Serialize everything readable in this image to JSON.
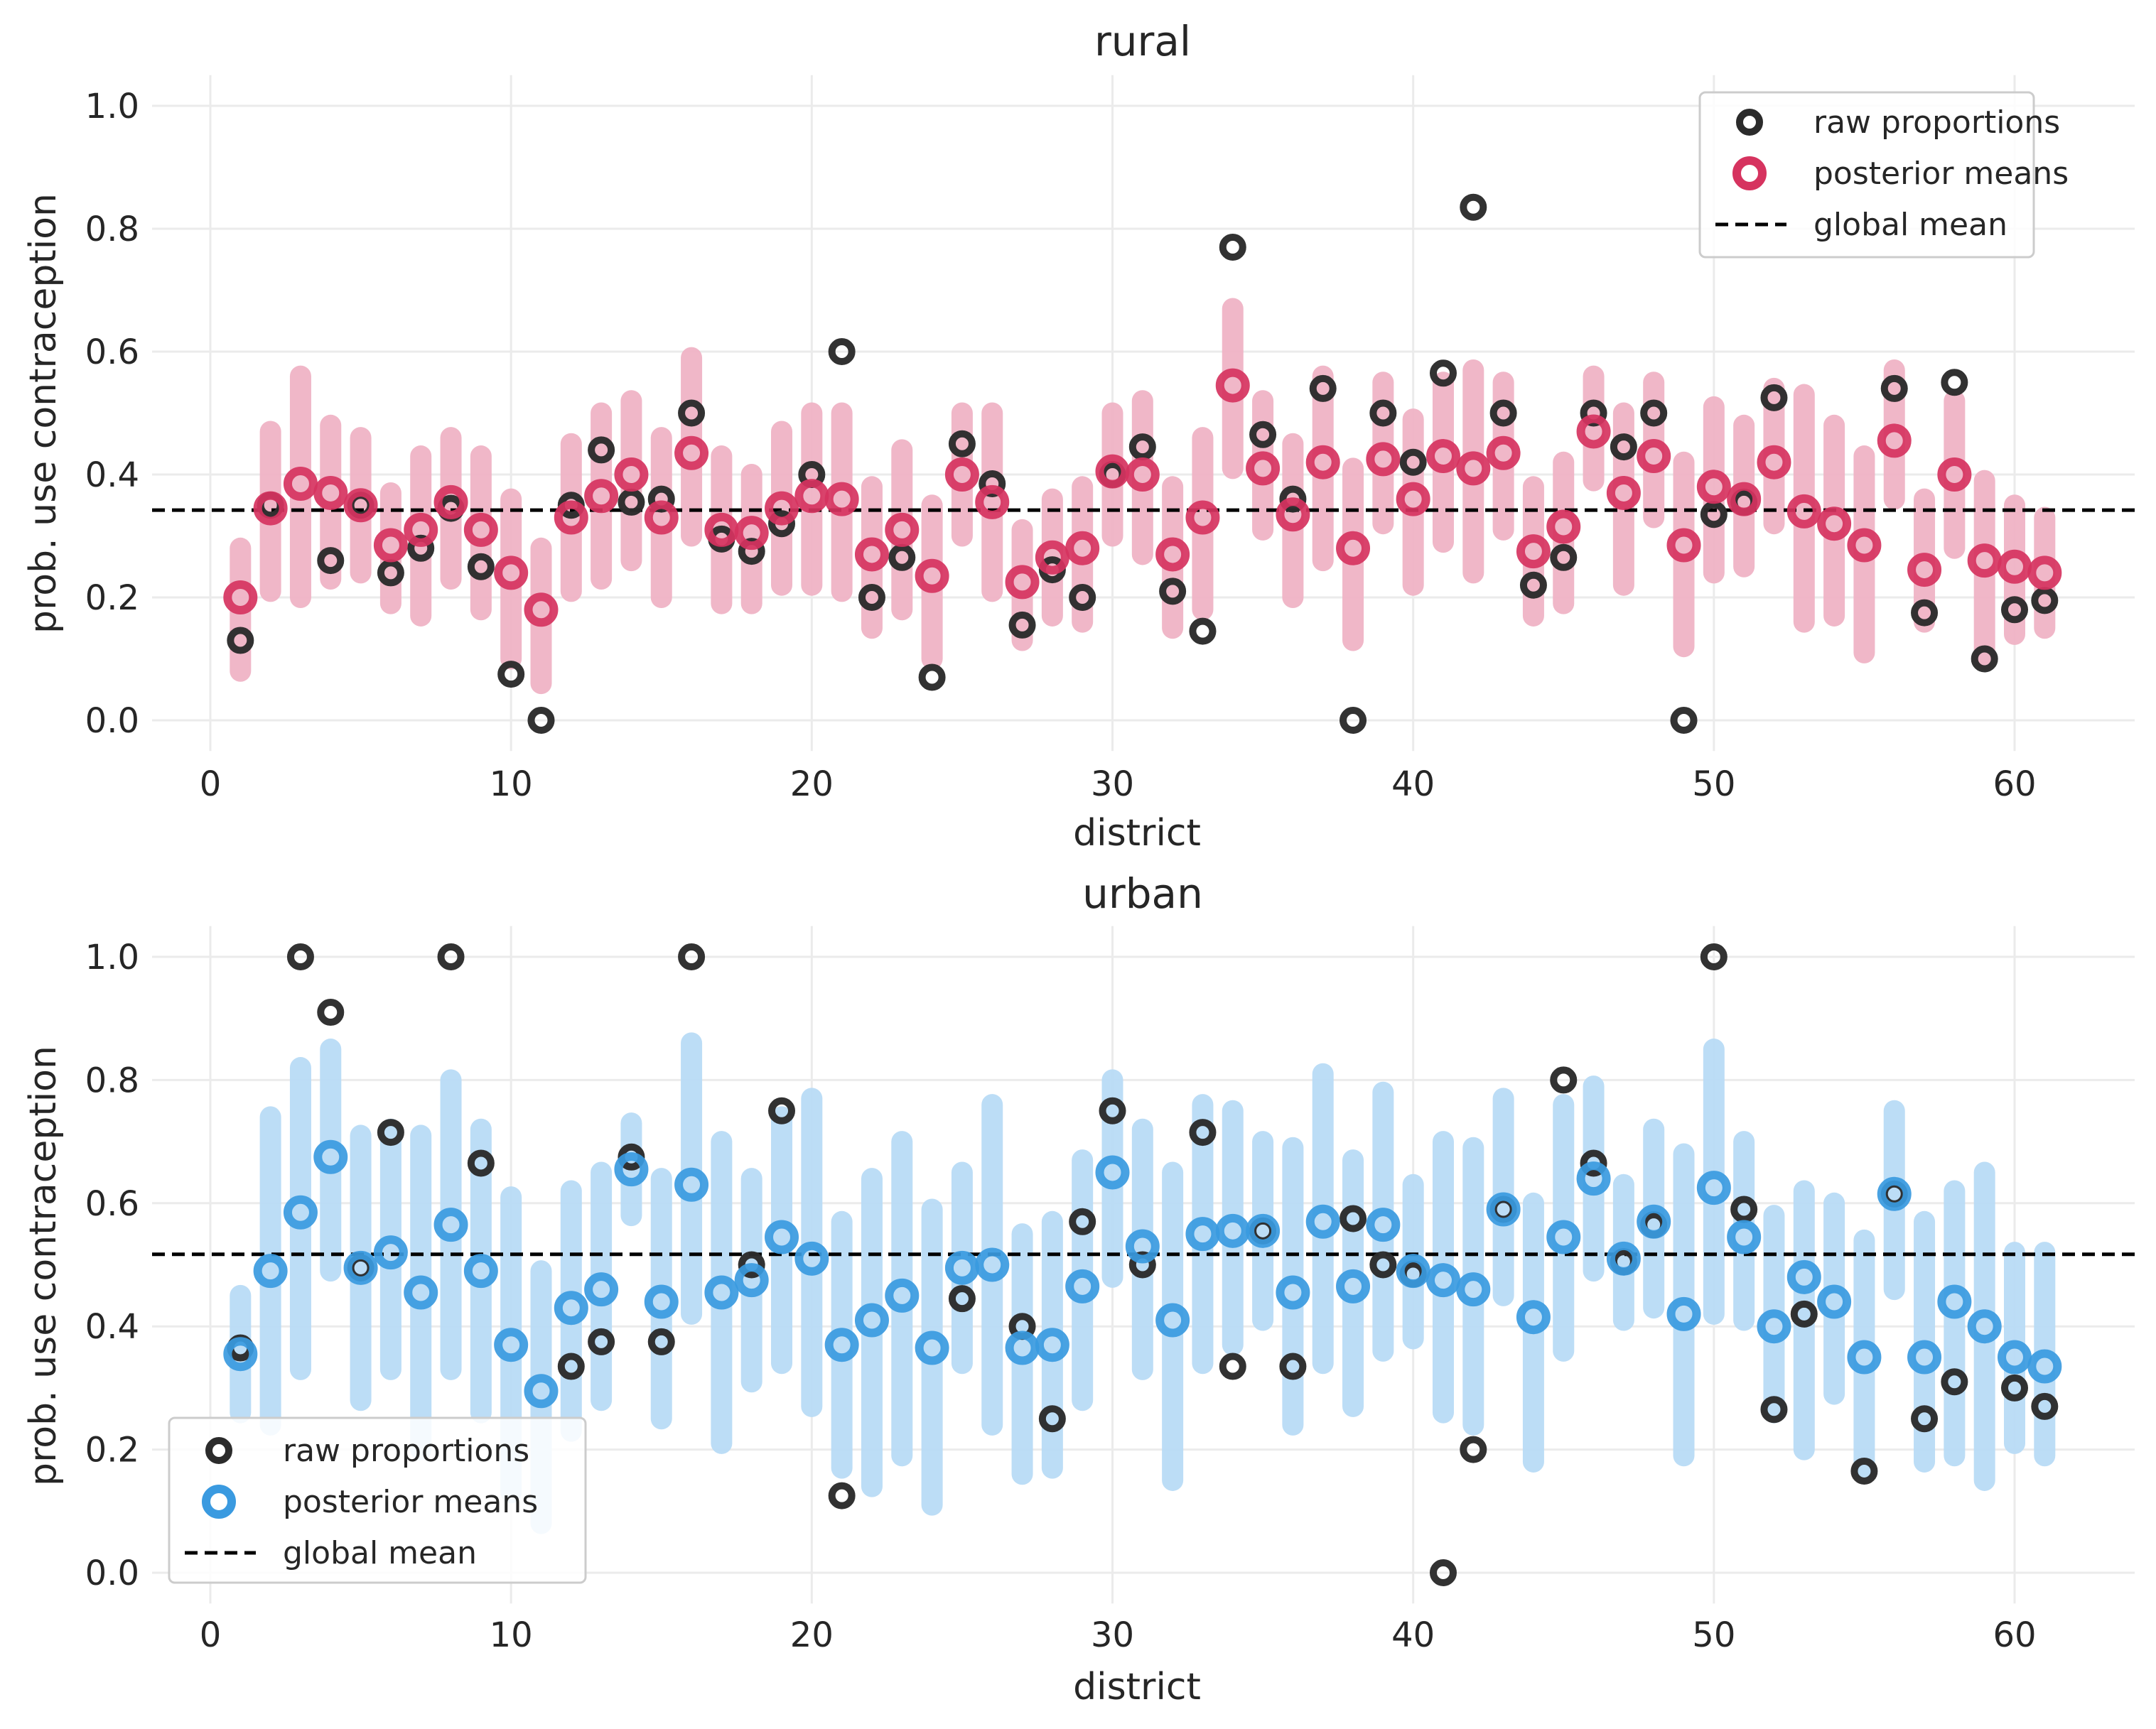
{
  "colors": {
    "raw": "#2b2b2b",
    "rural_post": "#d6335f",
    "rural_ci": "#efb3c5",
    "urban_post": "#3a9ae0",
    "urban_ci": "#b8dbf5",
    "global_mean": "#000000",
    "grid": "#ebebeb"
  },
  "chart_data": [
    {
      "type": "scatter",
      "title": "rural",
      "xlabel": "district",
      "ylabel": "prob. use contraception",
      "xlim": [
        -2,
        64
      ],
      "ylim": [
        -0.05,
        1.05
      ],
      "xticks": [
        0,
        10,
        20,
        30,
        40,
        50,
        60
      ],
      "yticks": [
        0.0,
        0.2,
        0.4,
        0.6,
        0.8,
        1.0
      ],
      "ytick_labels": [
        "0.0",
        "0.2",
        "0.4",
        "0.6",
        "0.8",
        "1.0"
      ],
      "grid": true,
      "legend_position": "top-right",
      "legend": [
        "raw proportions",
        "posterior means",
        "global mean"
      ],
      "global_mean": 0.342,
      "districts": [
        1,
        2,
        3,
        4,
        5,
        6,
        7,
        8,
        9,
        10,
        11,
        12,
        13,
        14,
        15,
        16,
        17,
        18,
        19,
        20,
        21,
        22,
        23,
        24,
        25,
        26,
        27,
        28,
        29,
        30,
        31,
        32,
        33,
        34,
        35,
        36,
        37,
        38,
        39,
        40,
        41,
        42,
        43,
        44,
        45,
        46,
        47,
        48,
        49,
        50,
        51,
        52,
        53,
        54,
        55,
        56,
        57,
        58,
        59,
        60,
        61
      ],
      "series": [
        {
          "name": "raw proportions",
          "values": [
            0.13,
            0.35,
            null,
            0.26,
            0.35,
            0.24,
            0.28,
            0.345,
            0.25,
            0.075,
            0.0,
            0.35,
            0.44,
            0.355,
            0.36,
            0.5,
            0.295,
            0.275,
            0.32,
            0.4,
            0.6,
            0.2,
            0.265,
            0.07,
            0.45,
            0.385,
            0.155,
            0.245,
            0.2,
            0.4,
            0.445,
            0.21,
            0.145,
            0.77,
            0.465,
            0.36,
            0.54,
            0.0,
            0.5,
            0.42,
            0.565,
            0.835,
            0.5,
            0.22,
            0.265,
            0.5,
            0.445,
            0.5,
            0.0,
            0.335,
            0.355,
            0.525,
            null,
            null,
            null,
            0.54,
            0.175,
            0.55,
            0.1,
            0.18,
            0.195
          ]
        },
        {
          "name": "posterior means",
          "values": [
            0.2,
            0.345,
            0.385,
            0.37,
            0.35,
            0.285,
            0.31,
            0.355,
            0.31,
            0.24,
            0.18,
            0.33,
            0.365,
            0.4,
            0.33,
            0.435,
            0.31,
            0.305,
            0.345,
            0.365,
            0.36,
            0.27,
            0.31,
            0.235,
            0.4,
            0.355,
            0.225,
            0.265,
            0.28,
            0.405,
            0.4,
            0.27,
            0.33,
            0.545,
            0.41,
            0.335,
            0.42,
            0.28,
            0.425,
            0.36,
            0.43,
            0.41,
            0.435,
            0.275,
            0.315,
            0.47,
            0.37,
            0.43,
            0.285,
            0.38,
            0.36,
            0.42,
            0.34,
            0.32,
            0.285,
            0.455,
            0.245,
            0.4,
            0.26,
            0.25,
            0.24
          ]
        },
        {
          "name": "ci_low",
          "values": [
            0.08,
            0.21,
            0.2,
            0.23,
            0.24,
            0.19,
            0.17,
            0.23,
            0.18,
            0.1,
            0.06,
            0.21,
            0.23,
            0.26,
            0.2,
            0.3,
            0.19,
            0.19,
            0.22,
            0.22,
            0.21,
            0.15,
            0.18,
            0.1,
            0.3,
            0.21,
            0.13,
            0.17,
            0.16,
            0.3,
            0.27,
            0.15,
            0.18,
            0.41,
            0.31,
            0.2,
            0.26,
            0.13,
            0.32,
            0.22,
            0.29,
            0.24,
            0.31,
            0.17,
            0.19,
            0.39,
            0.22,
            0.33,
            0.12,
            0.24,
            0.25,
            0.32,
            0.16,
            0.17,
            0.11,
            0.36,
            0.16,
            0.28,
            0.1,
            0.14,
            0.15
          ]
        },
        {
          "name": "ci_high",
          "values": [
            0.28,
            0.47,
            0.56,
            0.48,
            0.46,
            0.37,
            0.43,
            0.46,
            0.43,
            0.36,
            0.28,
            0.45,
            0.5,
            0.52,
            0.46,
            0.59,
            0.43,
            0.4,
            0.47,
            0.5,
            0.5,
            0.38,
            0.44,
            0.35,
            0.5,
            0.5,
            0.31,
            0.36,
            0.38,
            0.5,
            0.52,
            0.38,
            0.46,
            0.67,
            0.52,
            0.45,
            0.56,
            0.41,
            0.55,
            0.49,
            0.55,
            0.57,
            0.55,
            0.38,
            0.42,
            0.56,
            0.5,
            0.55,
            0.42,
            0.51,
            0.48,
            0.54,
            0.53,
            0.48,
            0.43,
            0.57,
            0.36,
            0.52,
            0.39,
            0.35,
            0.33
          ]
        }
      ]
    },
    {
      "type": "scatter",
      "title": "urban",
      "xlabel": "district",
      "ylabel": "prob. use contraception",
      "xlim": [
        -2,
        64
      ],
      "ylim": [
        -0.05,
        1.05
      ],
      "xticks": [
        0,
        10,
        20,
        30,
        40,
        50,
        60
      ],
      "yticks": [
        0.0,
        0.2,
        0.4,
        0.6,
        0.8,
        1.0
      ],
      "ytick_labels": [
        "0.0",
        "0.2",
        "0.4",
        "0.6",
        "0.8",
        "1.0"
      ],
      "grid": true,
      "legend_position": "bottom-left",
      "legend": [
        "raw proportions",
        "posterior means",
        "global mean"
      ],
      "global_mean": 0.517,
      "districts": [
        1,
        2,
        3,
        4,
        5,
        6,
        7,
        8,
        9,
        10,
        11,
        12,
        13,
        14,
        15,
        16,
        17,
        18,
        19,
        20,
        21,
        22,
        23,
        24,
        25,
        26,
        27,
        28,
        29,
        30,
        31,
        32,
        33,
        34,
        35,
        36,
        37,
        38,
        39,
        40,
        41,
        42,
        43,
        44,
        45,
        46,
        47,
        48,
        49,
        50,
        51,
        52,
        53,
        54,
        55,
        56,
        57,
        58,
        59,
        60,
        61
      ],
      "series": [
        {
          "name": "raw proportions",
          "values": [
            0.365,
            null,
            1.0,
            0.91,
            0.495,
            0.715,
            null,
            1.0,
            0.665,
            null,
            null,
            0.335,
            0.375,
            0.675,
            0.375,
            1.0,
            null,
            0.5,
            0.75,
            null,
            0.125,
            null,
            null,
            null,
            0.445,
            null,
            0.4,
            0.25,
            0.57,
            0.75,
            0.5,
            null,
            0.715,
            0.335,
            0.555,
            0.335,
            null,
            0.575,
            0.5,
            0.485,
            0.0,
            0.2,
            0.59,
            null,
            0.8,
            0.665,
            0.505,
            0.565,
            null,
            1.0,
            0.59,
            0.265,
            0.42,
            null,
            0.165,
            0.615,
            0.25,
            0.31,
            null,
            0.3,
            0.27
          ]
        },
        {
          "name": "posterior means",
          "values": [
            0.355,
            0.49,
            0.585,
            0.675,
            0.495,
            0.52,
            0.455,
            0.565,
            0.49,
            0.37,
            0.295,
            0.43,
            0.46,
            0.655,
            0.44,
            0.63,
            0.455,
            0.475,
            0.545,
            0.51,
            0.37,
            0.41,
            0.45,
            0.365,
            0.495,
            0.5,
            0.365,
            0.37,
            0.465,
            0.65,
            0.53,
            0.41,
            0.55,
            0.555,
            0.555,
            0.455,
            0.57,
            0.465,
            0.565,
            0.49,
            0.475,
            0.46,
            0.59,
            0.415,
            0.545,
            0.64,
            0.51,
            0.57,
            0.42,
            0.625,
            0.545,
            0.4,
            0.48,
            0.44,
            0.35,
            0.615,
            0.35,
            0.44,
            0.4,
            0.35,
            0.335
          ]
        },
        {
          "name": "ci_low",
          "values": [
            0.26,
            0.24,
            0.33,
            0.49,
            0.28,
            0.33,
            0.2,
            0.33,
            0.26,
            0.13,
            0.08,
            0.23,
            0.28,
            0.58,
            0.25,
            0.42,
            0.21,
            0.31,
            0.34,
            0.27,
            0.17,
            0.14,
            0.19,
            0.11,
            0.34,
            0.24,
            0.16,
            0.17,
            0.28,
            0.48,
            0.33,
            0.15,
            0.34,
            0.37,
            0.41,
            0.24,
            0.34,
            0.27,
            0.36,
            0.38,
            0.26,
            0.24,
            0.45,
            0.18,
            0.36,
            0.49,
            0.41,
            0.43,
            0.19,
            0.42,
            0.41,
            0.26,
            0.2,
            0.29,
            0.17,
            0.46,
            0.18,
            0.19,
            0.15,
            0.21,
            0.19
          ]
        },
        {
          "name": "ci_high",
          "values": [
            0.45,
            0.74,
            0.82,
            0.85,
            0.71,
            0.72,
            0.71,
            0.8,
            0.72,
            0.61,
            0.49,
            0.62,
            0.65,
            0.73,
            0.64,
            0.86,
            0.7,
            0.64,
            0.74,
            0.77,
            0.57,
            0.64,
            0.7,
            0.59,
            0.65,
            0.76,
            0.55,
            0.57,
            0.67,
            0.8,
            0.72,
            0.65,
            0.76,
            0.75,
            0.7,
            0.69,
            0.81,
            0.67,
            0.78,
            0.63,
            0.7,
            0.69,
            0.77,
            0.6,
            0.76,
            0.79,
            0.63,
            0.72,
            0.68,
            0.85,
            0.7,
            0.58,
            0.62,
            0.6,
            0.54,
            0.75,
            0.57,
            0.62,
            0.65,
            0.52,
            0.52
          ]
        }
      ]
    }
  ]
}
